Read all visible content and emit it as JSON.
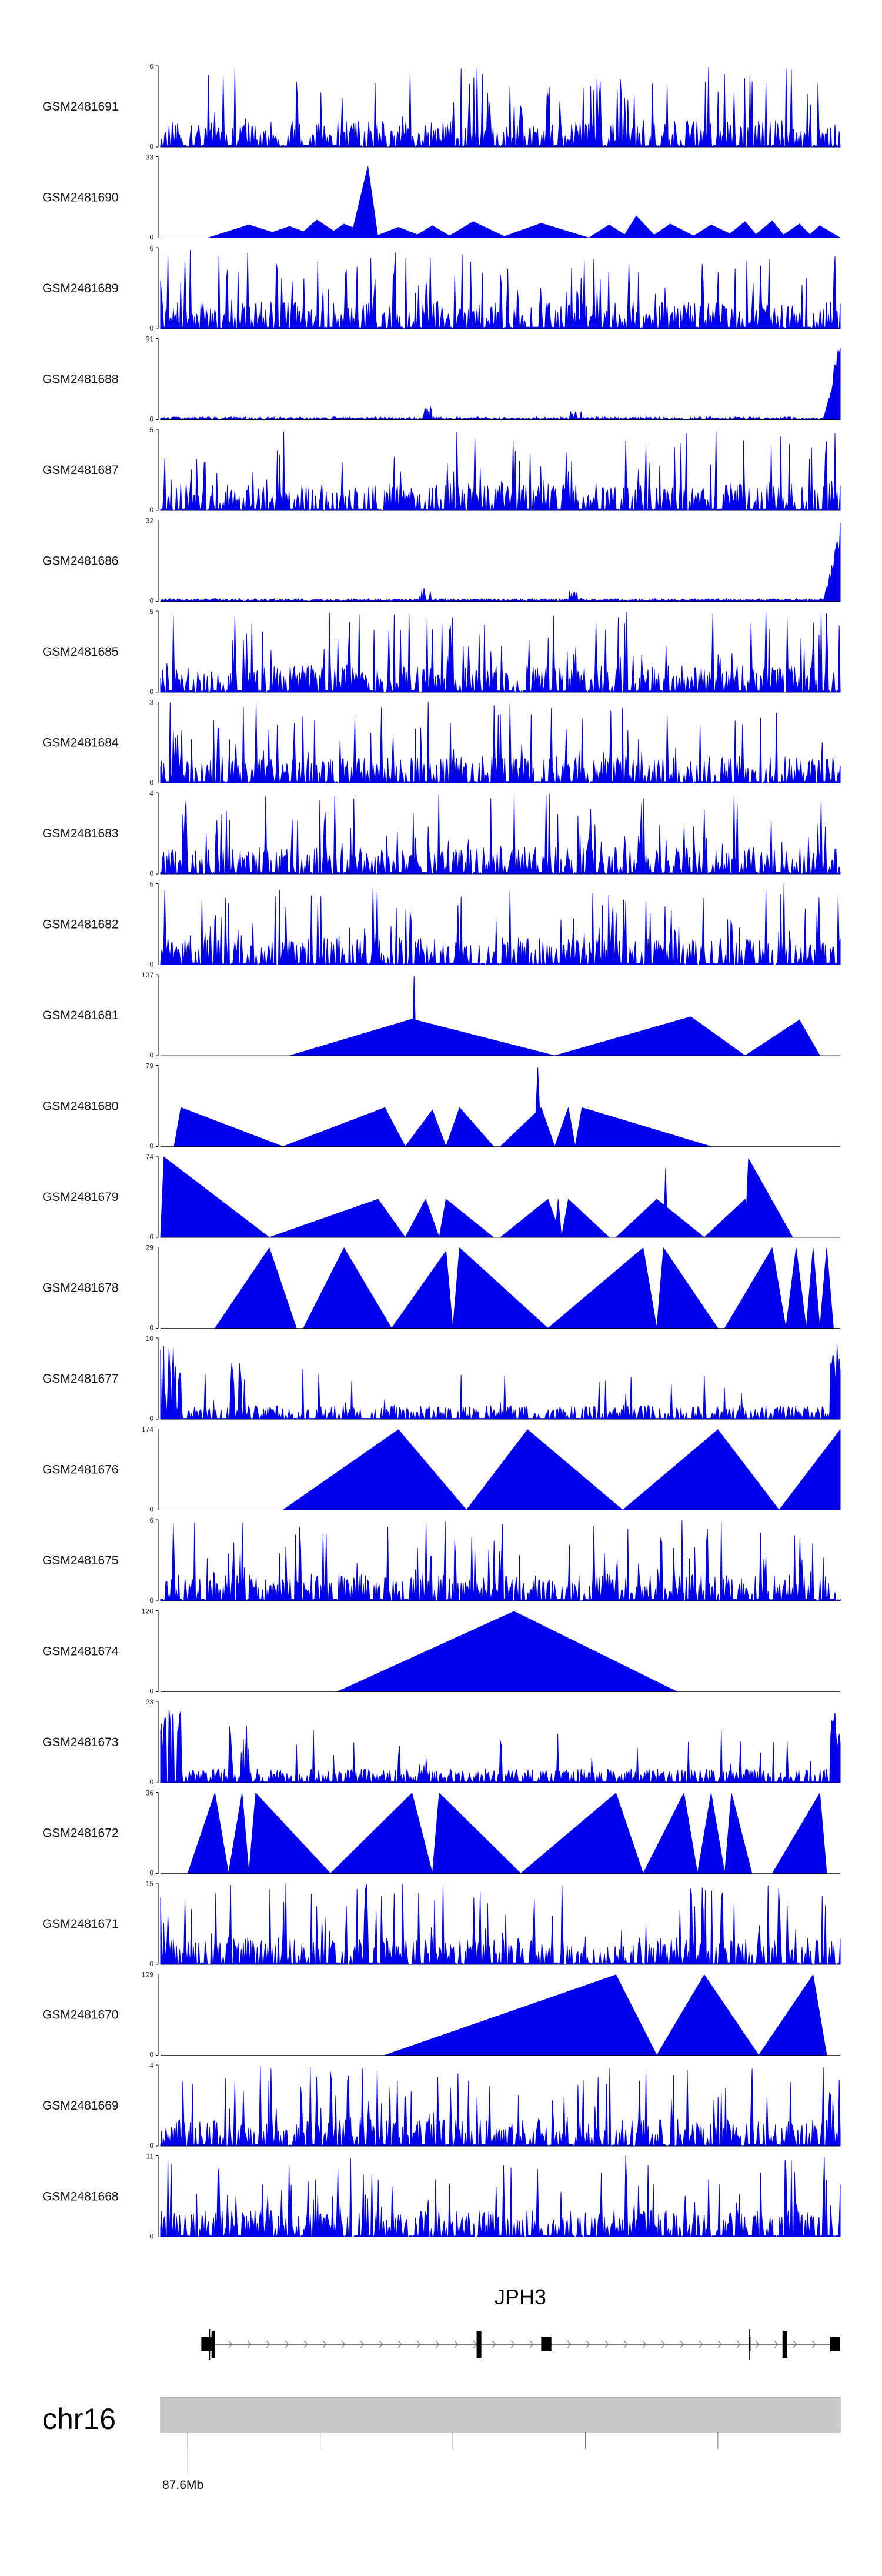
{
  "chart_data": {
    "type": "area",
    "colors": {
      "signal": "#0000ee",
      "axis": "#000000",
      "ideogram": "#c8c8c8"
    },
    "tracks": [
      {
        "name": "GSM2481691",
        "ylim": [
          0,
          6
        ],
        "pattern": "dense",
        "seed": 11
      },
      {
        "name": "GSM2481690",
        "ylim": [
          0,
          33
        ],
        "pattern": "peaks",
        "seed": 12,
        "peaks": [
          [
            0.07,
            0.13,
            0.19,
            0.16
          ],
          [
            0.14,
            0.19,
            0.235,
            0.14
          ],
          [
            0.2,
            0.23,
            0.27,
            0.22
          ],
          [
            0.24,
            0.27,
            0.32,
            0.17
          ],
          [
            0.28,
            0.305,
            0.32,
            0.88
          ],
          [
            0.31,
            0.35,
            0.39,
            0.13
          ],
          [
            0.37,
            0.4,
            0.43,
            0.15
          ],
          [
            0.42,
            0.46,
            0.51,
            0.2
          ],
          [
            0.5,
            0.56,
            0.63,
            0.18
          ],
          [
            0.63,
            0.66,
            0.69,
            0.16
          ],
          [
            0.68,
            0.7,
            0.73,
            0.27
          ],
          [
            0.72,
            0.75,
            0.79,
            0.17
          ],
          [
            0.78,
            0.81,
            0.85,
            0.16
          ],
          [
            0.83,
            0.86,
            0.88,
            0.2
          ],
          [
            0.87,
            0.9,
            0.92,
            0.21
          ],
          [
            0.91,
            0.94,
            0.96,
            0.17
          ],
          [
            0.95,
            0.97,
            1.0,
            0.15
          ]
        ]
      },
      {
        "name": "GSM2481689",
        "ylim": [
          0,
          6
        ],
        "pattern": "dense",
        "seed": 13
      },
      {
        "name": "GSM2481688",
        "ylim": [
          0,
          91
        ],
        "pattern": "lowrise",
        "seed": 14
      },
      {
        "name": "GSM2481687",
        "ylim": [
          0,
          5
        ],
        "pattern": "dense",
        "seed": 15
      },
      {
        "name": "GSM2481686",
        "ylim": [
          0,
          32
        ],
        "pattern": "lowrise",
        "seed": 16
      },
      {
        "name": "GSM2481685",
        "ylim": [
          0,
          5
        ],
        "pattern": "dense",
        "seed": 17
      },
      {
        "name": "GSM2481684",
        "ylim": [
          0,
          3
        ],
        "pattern": "dense",
        "seed": 18
      },
      {
        "name": "GSM2481683",
        "ylim": [
          0,
          4
        ],
        "pattern": "dense",
        "seed": 19
      },
      {
        "name": "GSM2481682",
        "ylim": [
          0,
          5
        ],
        "pattern": "dense",
        "seed": 20
      },
      {
        "name": "GSM2481681",
        "ylim": [
          0,
          137
        ],
        "pattern": "peaks",
        "seed": 21,
        "peaks": [
          [
            0.19,
            0.37,
            0.58,
            0.45
          ],
          [
            0.37,
            0.373,
            0.376,
            0.98
          ],
          [
            0.58,
            0.78,
            0.86,
            0.48
          ],
          [
            0.86,
            0.94,
            0.97,
            0.44
          ]
        ]
      },
      {
        "name": "GSM2481680",
        "ylim": [
          0,
          79
        ],
        "pattern": "peaks",
        "seed": 22,
        "peaks": [
          [
            0.02,
            0.03,
            0.18,
            0.48
          ],
          [
            0.18,
            0.33,
            0.36,
            0.48
          ],
          [
            0.36,
            0.4,
            0.42,
            0.45
          ],
          [
            0.42,
            0.44,
            0.49,
            0.48
          ],
          [
            0.5,
            0.56,
            0.58,
            0.48
          ],
          [
            0.55,
            0.555,
            0.56,
            0.97
          ],
          [
            0.58,
            0.6,
            0.61,
            0.48
          ],
          [
            0.61,
            0.62,
            0.81,
            0.48
          ]
        ]
      },
      {
        "name": "GSM2481679",
        "ylim": [
          0,
          74
        ],
        "pattern": "peaks",
        "seed": 23,
        "peaks": [
          [
            0.0,
            0.005,
            0.16,
            0.99
          ],
          [
            0.16,
            0.32,
            0.36,
            0.47
          ],
          [
            0.36,
            0.39,
            0.41,
            0.47
          ],
          [
            0.41,
            0.42,
            0.49,
            0.47
          ],
          [
            0.5,
            0.57,
            0.59,
            0.47
          ],
          [
            0.58,
            0.585,
            0.59,
            0.47
          ],
          [
            0.59,
            0.6,
            0.66,
            0.47
          ],
          [
            0.67,
            0.73,
            0.8,
            0.47
          ],
          [
            0.74,
            0.743,
            0.746,
            0.85
          ],
          [
            0.8,
            0.86,
            0.87,
            0.47
          ],
          [
            0.86,
            0.865,
            0.93,
            0.97
          ]
        ]
      },
      {
        "name": "GSM2481678",
        "ylim": [
          0,
          29
        ],
        "pattern": "peaks",
        "seed": 24,
        "peaks": [
          [
            0.08,
            0.16,
            0.2,
            0.99
          ],
          [
            0.21,
            0.27,
            0.34,
            0.99
          ],
          [
            0.34,
            0.42,
            0.43,
            0.95
          ],
          [
            0.43,
            0.44,
            0.57,
            0.99
          ],
          [
            0.57,
            0.71,
            0.73,
            0.99
          ],
          [
            0.73,
            0.74,
            0.82,
            0.99
          ],
          [
            0.83,
            0.9,
            0.92,
            0.99
          ],
          [
            0.92,
            0.935,
            0.95,
            0.99
          ],
          [
            0.95,
            0.96,
            0.97,
            0.99
          ],
          [
            0.97,
            0.98,
            0.99,
            0.99
          ]
        ]
      },
      {
        "name": "GSM2481677",
        "ylim": [
          0,
          10
        ],
        "pattern": "sparse",
        "seed": 25
      },
      {
        "name": "GSM2481676",
        "ylim": [
          0,
          174
        ],
        "pattern": "peaks",
        "seed": 26,
        "peaks": [
          [
            0.18,
            0.35,
            0.45,
            0.99
          ],
          [
            0.45,
            0.54,
            0.68,
            0.99
          ],
          [
            0.68,
            0.82,
            0.91,
            0.99
          ],
          [
            0.91,
            1.0,
            1.0,
            0.99
          ]
        ]
      },
      {
        "name": "GSM2481675",
        "ylim": [
          0,
          6
        ],
        "pattern": "dense",
        "seed": 27
      },
      {
        "name": "GSM2481674",
        "ylim": [
          0,
          120
        ],
        "pattern": "peaks",
        "seed": 28,
        "peaks": [
          [
            0.26,
            0.52,
            0.76,
            0.99
          ]
        ]
      },
      {
        "name": "GSM2481673",
        "ylim": [
          0,
          23
        ],
        "pattern": "sparse",
        "seed": 29
      },
      {
        "name": "GSM2481672",
        "ylim": [
          0,
          36
        ],
        "pattern": "peaks",
        "seed": 30,
        "peaks": [
          [
            0.04,
            0.08,
            0.1,
            0.99
          ],
          [
            0.1,
            0.12,
            0.13,
            0.99
          ],
          [
            0.13,
            0.14,
            0.25,
            0.99
          ],
          [
            0.25,
            0.37,
            0.4,
            0.99
          ],
          [
            0.4,
            0.41,
            0.53,
            0.99
          ],
          [
            0.53,
            0.67,
            0.71,
            0.99
          ],
          [
            0.71,
            0.77,
            0.79,
            0.99
          ],
          [
            0.79,
            0.81,
            0.83,
            0.99
          ],
          [
            0.83,
            0.84,
            0.87,
            0.99
          ],
          [
            0.9,
            0.97,
            0.98,
            0.99
          ]
        ]
      },
      {
        "name": "GSM2481671",
        "ylim": [
          0,
          15
        ],
        "pattern": "dense",
        "seed": 31
      },
      {
        "name": "GSM2481670",
        "ylim": [
          0,
          129
        ],
        "pattern": "peaks",
        "seed": 32,
        "peaks": [
          [
            0.33,
            0.67,
            0.73,
            0.99
          ],
          [
            0.73,
            0.8,
            0.88,
            0.99
          ],
          [
            0.88,
            0.96,
            0.98,
            0.99
          ]
        ]
      },
      {
        "name": "GSM2481669",
        "ylim": [
          0,
          4
        ],
        "pattern": "dense",
        "seed": 33
      },
      {
        "name": "GSM2481668",
        "ylim": [
          0,
          11
        ],
        "pattern": "dense",
        "seed": 34
      }
    ],
    "gene": {
      "name": "JPH3",
      "strand": "+",
      "exons": [
        [
          0.06,
          0.075
        ],
        [
          0.075,
          0.08
        ],
        [
          0.465,
          0.472
        ],
        [
          0.56,
          0.575
        ],
        [
          0.865,
          0.868
        ],
        [
          0.915,
          0.922
        ],
        [
          0.985,
          1.0
        ]
      ]
    },
    "ideogram": {
      "chromosome": "chr16",
      "position_label": "87.6Mb"
    }
  }
}
